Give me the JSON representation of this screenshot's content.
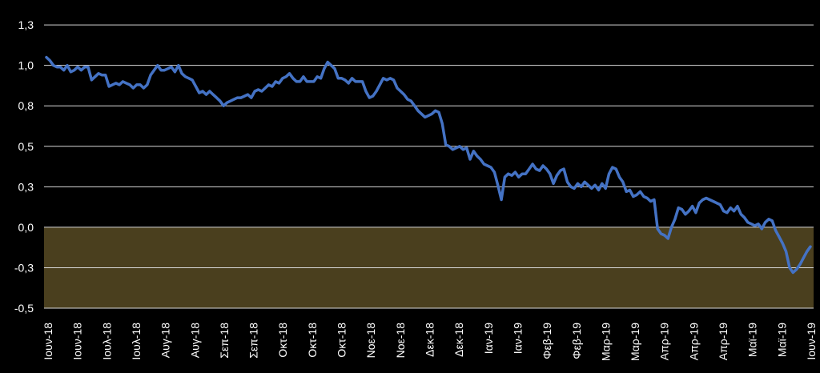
{
  "colors": {
    "background": "#000000",
    "line": "#4472C4",
    "negative_band": "#4A3F1E",
    "grid": "#d9d9d9",
    "text": "#ffffff"
  },
  "chart_data": {
    "type": "line",
    "title": "",
    "xlabel": "",
    "ylabel": "",
    "ylim": [
      -0.5,
      1.3
    ],
    "y_ticks": [
      "1,3",
      "1,0",
      "0,8",
      "0,5",
      "0,3",
      "0,0",
      "-0,3",
      "-0,5"
    ],
    "y_tick_values": [
      1.25,
      1.0,
      0.75,
      0.5,
      0.25,
      0.0,
      -0.25,
      -0.5
    ],
    "x_tick_labels": [
      "Ιουν-18",
      "Ιουν-18",
      "Ιουλ-18",
      "Ιουλ-18",
      "Αυγ-18",
      "Αυγ-18",
      "Σεπ-18",
      "Σεπ-18",
      "Οκτ-18",
      "Οκτ-18",
      "Οκτ-18",
      "Νοε-18",
      "Νοε-18",
      "Δεκ-18",
      "Δεκ-18",
      "Ιαν-19",
      "Ιαν-19",
      "Φεβ-19",
      "Φεβ-19",
      "Μαρ-19",
      "Μαρ-19",
      "Απρ-19",
      "Απρ-19",
      "Απρ-19",
      "Μαϊ-19",
      "Μαϊ-19",
      "Ιουν-19"
    ],
    "negative_band": [
      -0.5,
      0.0
    ],
    "grid": true,
    "legend": "none",
    "series": [
      {
        "values": [
          1.05,
          1.03,
          1.0,
          0.99,
          0.99,
          0.97,
          1.0,
          0.96,
          0.97,
          0.99,
          0.97,
          0.99,
          0.99,
          0.91,
          0.93,
          0.95,
          0.94,
          0.94,
          0.87,
          0.88,
          0.89,
          0.88,
          0.9,
          0.89,
          0.88,
          0.86,
          0.88,
          0.88,
          0.86,
          0.88,
          0.94,
          0.97,
          1.0,
          0.97,
          0.97,
          0.98,
          0.99,
          0.96,
          1.0,
          0.95,
          0.93,
          0.92,
          0.91,
          0.87,
          0.83,
          0.84,
          0.82,
          0.84,
          0.82,
          0.8,
          0.78,
          0.75,
          0.77,
          0.78,
          0.79,
          0.8,
          0.8,
          0.81,
          0.82,
          0.8,
          0.84,
          0.85,
          0.84,
          0.86,
          0.88,
          0.87,
          0.9,
          0.89,
          0.92,
          0.93,
          0.95,
          0.92,
          0.9,
          0.9,
          0.93,
          0.9,
          0.9,
          0.9,
          0.93,
          0.92,
          0.98,
          1.02,
          1.0,
          0.98,
          0.92,
          0.92,
          0.91,
          0.89,
          0.92,
          0.9,
          0.9,
          0.9,
          0.84,
          0.8,
          0.81,
          0.84,
          0.88,
          0.92,
          0.91,
          0.92,
          0.91,
          0.86,
          0.84,
          0.82,
          0.79,
          0.78,
          0.75,
          0.72,
          0.7,
          0.68,
          0.69,
          0.7,
          0.72,
          0.71,
          0.64,
          0.51,
          0.5,
          0.48,
          0.49,
          0.5,
          0.48,
          0.49,
          0.42,
          0.47,
          0.44,
          0.42,
          0.39,
          0.38,
          0.37,
          0.34,
          0.26,
          0.17,
          0.31,
          0.33,
          0.32,
          0.34,
          0.31,
          0.33,
          0.33,
          0.36,
          0.39,
          0.36,
          0.35,
          0.38,
          0.36,
          0.33,
          0.27,
          0.32,
          0.35,
          0.36,
          0.28,
          0.25,
          0.24,
          0.27,
          0.25,
          0.28,
          0.26,
          0.24,
          0.26,
          0.23,
          0.27,
          0.24,
          0.33,
          0.37,
          0.36,
          0.31,
          0.28,
          0.22,
          0.23,
          0.19,
          0.2,
          0.22,
          0.19,
          0.18,
          0.16,
          0.17,
          -0.01,
          -0.04,
          -0.05,
          -0.07,
          0.0,
          0.05,
          0.12,
          0.11,
          0.08,
          0.1,
          0.13,
          0.09,
          0.15,
          0.17,
          0.18,
          0.17,
          0.16,
          0.15,
          0.14,
          0.1,
          0.09,
          0.12,
          0.1,
          0.13,
          0.08,
          0.06,
          0.03,
          0.02,
          0.01,
          0.02,
          -0.01,
          0.03,
          0.05,
          0.04,
          -0.02,
          -0.06,
          -0.1,
          -0.15,
          -0.25,
          -0.28,
          -0.26,
          -0.23,
          -0.19,
          -0.15,
          -0.12
        ]
      }
    ]
  }
}
